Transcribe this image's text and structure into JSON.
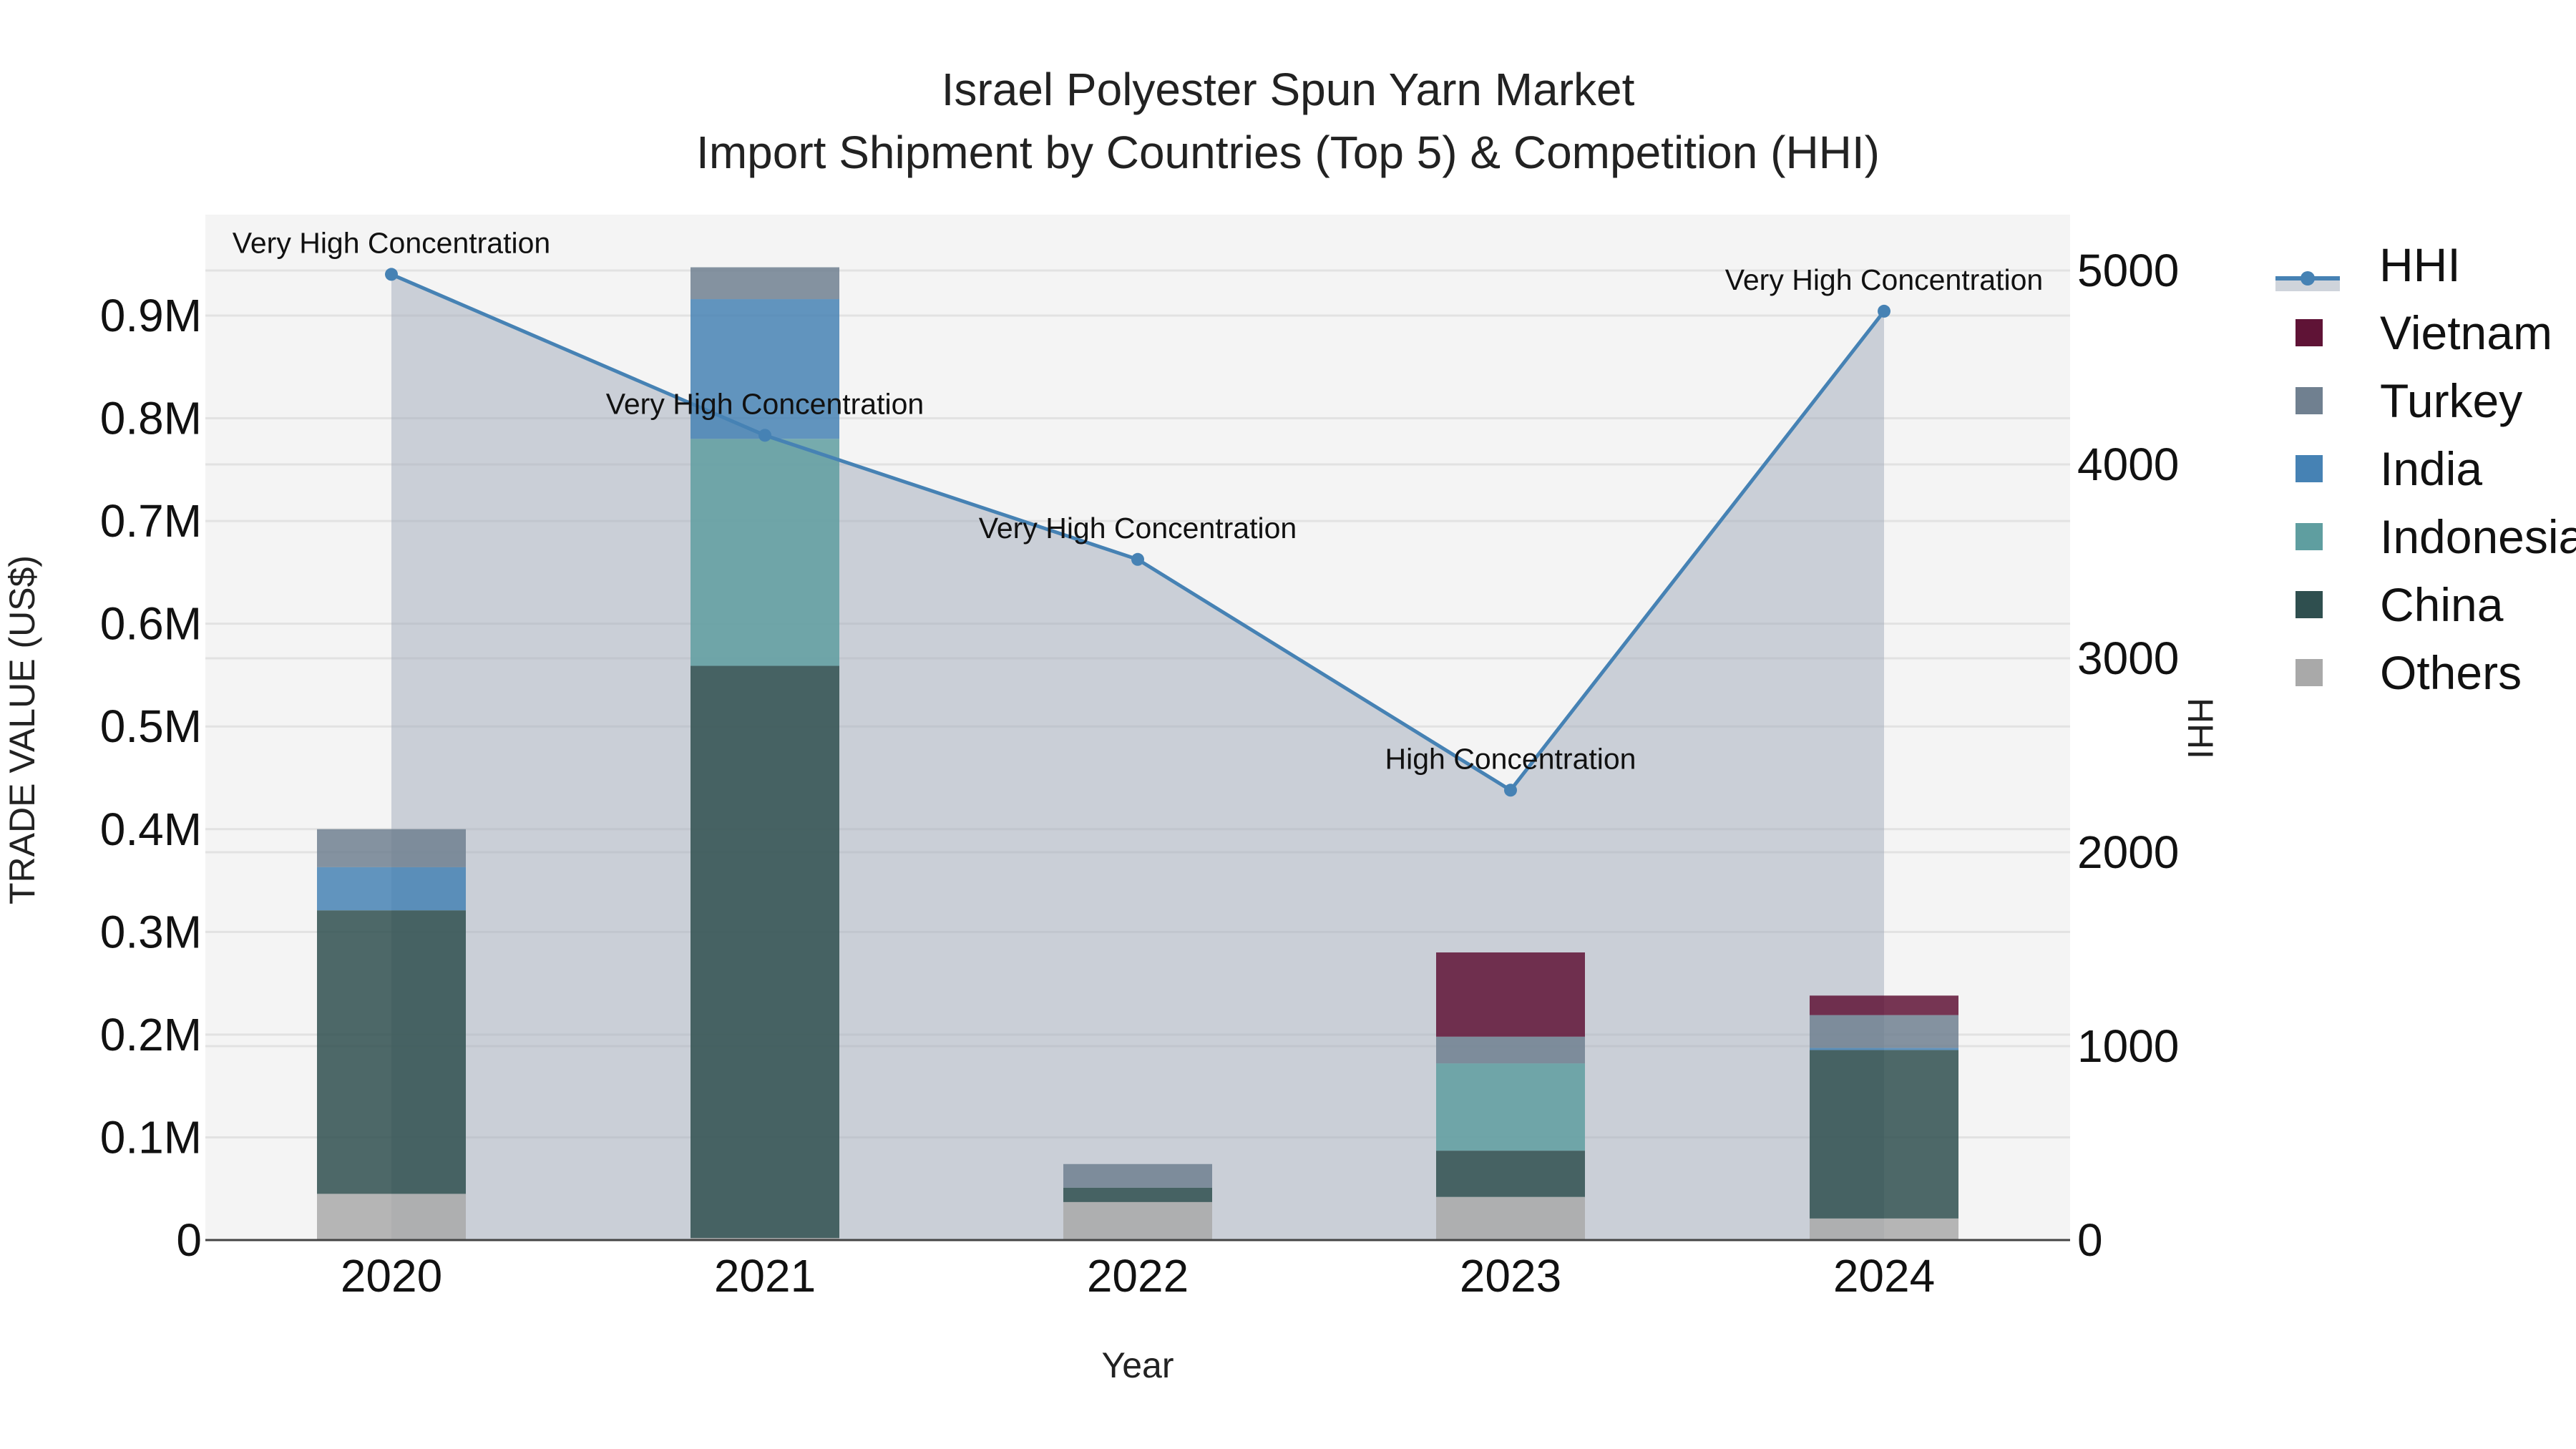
{
  "title": {
    "line1": "Israel Polyester Spun Yarn Market",
    "line2": "Import Shipment by Countries (Top 5) & Competition (HHI)"
  },
  "axes": {
    "x_label": "Year",
    "y_label": "TRADE VALUE (US$)",
    "y2_label": "HHI",
    "y_ticks": [
      "0",
      "0.1M",
      "0.2M",
      "0.3M",
      "0.4M",
      "0.5M",
      "0.6M",
      "0.7M",
      "0.8M",
      "0.9M"
    ],
    "y2_ticks": [
      "0",
      "1000",
      "2000",
      "3000",
      "4000",
      "5000"
    ],
    "x_ticks": [
      "2020",
      "2021",
      "2022",
      "2023",
      "2024"
    ]
  },
  "legend": [
    {
      "label": "HHI",
      "color": "#4682b4",
      "type": "line"
    },
    {
      "label": "Vietnam",
      "color": "#5f1336",
      "type": "bar"
    },
    {
      "label": "Turkey",
      "color": "#708090",
      "type": "bar"
    },
    {
      "label": "India",
      "color": "#4682b4",
      "type": "bar"
    },
    {
      "label": "Indonesia",
      "color": "#5f9ea0",
      "type": "bar"
    },
    {
      "label": "China",
      "color": "#2f4f4f",
      "type": "bar"
    },
    {
      "label": "Others",
      "color": "#a9a9a9",
      "type": "bar"
    }
  ],
  "annotations": [
    {
      "year": "2020",
      "text": "Very High Concentration"
    },
    {
      "year": "2021",
      "text": "Very High Concentration"
    },
    {
      "year": "2022",
      "text": "Very High Concentration"
    },
    {
      "year": "2023",
      "text": "High Concentration"
    },
    {
      "year": "2024",
      "text": "Very High Concentration"
    }
  ],
  "chart_data": {
    "type": "bar",
    "stacked": true,
    "title": "Israel Polyester Spun Yarn Market — Import Shipment by Countries (Top 5) & Competition (HHI)",
    "xlabel": "Year",
    "ylabel": "TRADE VALUE (US$)",
    "y2label": "HHI",
    "categories": [
      "2020",
      "2021",
      "2022",
      "2023",
      "2024"
    ],
    "ylim": [
      0,
      1000000
    ],
    "y2lim": [
      0,
      5300
    ],
    "grid": true,
    "legend_position": "right",
    "series": [
      {
        "name": "Others",
        "color": "#a9a9a9",
        "values": [
          45000,
          2000,
          37000,
          42000,
          21000
        ]
      },
      {
        "name": "China",
        "color": "#2f4f4f",
        "values": [
          276000,
          557000,
          14000,
          45000,
          164000
        ]
      },
      {
        "name": "Indonesia",
        "color": "#5f9ea0",
        "values": [
          0,
          221000,
          0,
          85000,
          0
        ]
      },
      {
        "name": "India",
        "color": "#4682b4",
        "values": [
          42000,
          136000,
          0,
          0,
          2000
        ]
      },
      {
        "name": "Turkey",
        "color": "#708090",
        "values": [
          37000,
          31000,
          23000,
          26000,
          32000
        ]
      },
      {
        "name": "Vietnam",
        "color": "#5f1336",
        "values": [
          0,
          0,
          0,
          82000,
          19000
        ]
      }
    ],
    "totals": [
      400000,
      947000,
      74000,
      280000,
      238000
    ],
    "line_series": {
      "name": "HHI",
      "axis": "y2",
      "color": "#4682b4",
      "fill": "tozeroy",
      "values": [
        4980,
        4150,
        3510,
        2320,
        4790
      ],
      "labels": [
        "Very High Concentration",
        "Very High Concentration",
        "Very High Concentration",
        "High Concentration",
        "Very High Concentration"
      ]
    }
  }
}
